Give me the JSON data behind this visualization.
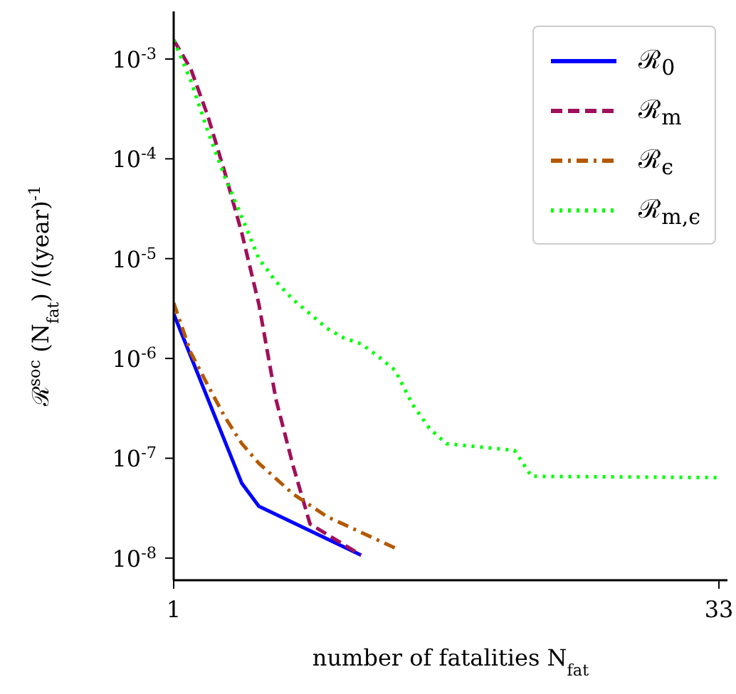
{
  "chart_data": {
    "type": "line",
    "xlabel": "number of fatalities N$_{fat}$",
    "ylabel": "ℛ$^{soc}$ (N$_{fat}$) /((year)$^{-1}$",
    "log": "y",
    "grid": false,
    "legend": "top right",
    "marker": "none",
    "xlim": [
      1,
      33.5
    ],
    "xticks": [
      1,
      33
    ],
    "ylim": [
      6e-09,
      0.003
    ],
    "yticks": [
      {
        "value": 1e-08,
        "label": "10$^{-8}$"
      },
      {
        "value": 1e-07,
        "label": "10$^{-7}$"
      },
      {
        "value": 1e-06,
        "label": "10$^{-6}$"
      },
      {
        "value": 1e-05,
        "label": "10$^{-5}$"
      },
      {
        "value": 0.0001,
        "label": "10$^{-4}$"
      },
      {
        "value": 0.001,
        "label": "10$^{-3}$"
      }
    ],
    "series": [
      {
        "name": "ℛ$_{0}$",
        "color": "#0000ff",
        "line_style": "solid",
        "x": [
          1,
          5,
          6,
          12
        ],
        "values": [
          2.8e-06,
          5.6e-08,
          3.3e-08,
          1.07e-08
        ]
      },
      {
        "name": "ℛ$_{m}$",
        "color": "#a0105a",
        "line_style": "dashed",
        "x": [
          1,
          2,
          3,
          4,
          5,
          6,
          7,
          8,
          9,
          12
        ],
        "values": [
          0.00155,
          0.0008,
          0.00027,
          7.3e-05,
          1.8e-05,
          3.5e-06,
          3.9e-07,
          8.5e-08,
          2.2e-08,
          1.07e-08
        ]
      },
      {
        "name": "ℛ$_{ϵ}$",
        "color": "#b35900",
        "line_style": "dashdot",
        "x": [
          1,
          2,
          3,
          4,
          5,
          6,
          8,
          10,
          14
        ],
        "values": [
          3.6e-06,
          1.15e-06,
          5.4e-07,
          2.6e-07,
          1.4e-07,
          8.9e-08,
          4.4e-08,
          2.6e-08,
          1.26e-08
        ]
      },
      {
        "name": "ℛ$_{m,ϵ}$",
        "color": "#00ff00",
        "line_style": "dotted",
        "x": [
          1,
          2,
          3,
          4,
          5,
          6,
          7,
          8,
          9,
          10,
          11,
          12,
          13,
          14,
          15,
          16,
          17,
          21,
          22,
          33
        ],
        "values": [
          0.00155,
          0.00061,
          0.00019,
          6.6e-05,
          2.6e-05,
          1e-05,
          5.9e-06,
          3.9e-06,
          2.8e-06,
          2e-06,
          1.6e-06,
          1.4e-06,
          1.05e-06,
          7.6e-07,
          3.5e-07,
          2e-07,
          1.4e-07,
          1.2e-07,
          6.6e-08,
          6.4e-08
        ]
      }
    ]
  }
}
